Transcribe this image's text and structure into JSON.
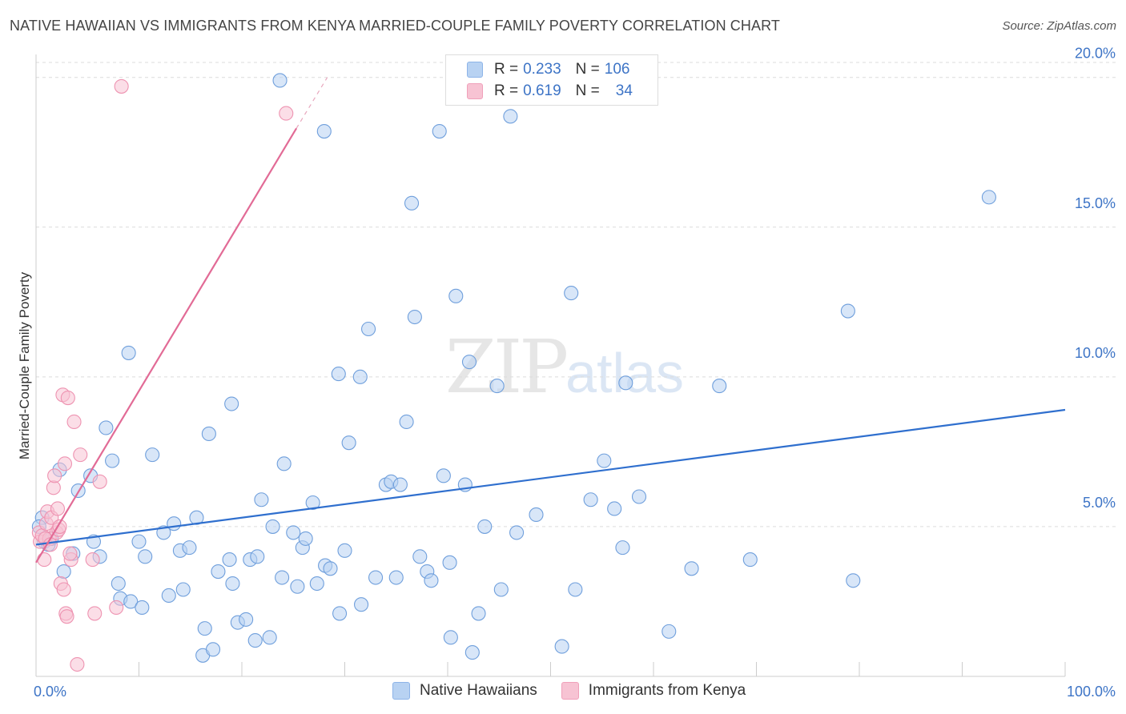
{
  "header": {
    "title": "NATIVE HAWAIIAN VS IMMIGRANTS FROM KENYA MARRIED-COUPLE FAMILY POVERTY CORRELATION CHART",
    "source": "Source: ZipAtlas.com"
  },
  "watermark": {
    "zip": "ZIP",
    "atlas": "atlas"
  },
  "legend": {
    "rows": [
      {
        "r_label": "R = ",
        "r_value": "0.233",
        "n_label": "N = ",
        "n_value": "106",
        "color": "#8db4e8"
      },
      {
        "r_label": "R = ",
        "r_value": "0.619",
        "n_label": "N = ",
        "n_value": "34",
        "color": "#f0a0ba"
      }
    ]
  },
  "chart_data": {
    "type": "scatter",
    "title": "NATIVE HAWAIIAN VS IMMIGRANTS FROM KENYA MARRIED-COUPLE FAMILY POVERTY CORRELATION CHART",
    "xlabel": "",
    "ylabel": "Married-Couple Family Poverty",
    "xlim": [
      0,
      100
    ],
    "ylim": [
      0,
      20.5
    ],
    "x_tick_labels": [
      "0.0%",
      "100.0%"
    ],
    "y_ticks": [
      5,
      10,
      15,
      20
    ],
    "y_tick_labels": [
      "5.0%",
      "10.0%",
      "15.0%",
      "20.0%"
    ],
    "series": [
      {
        "name": "Native Hawaiians",
        "fill": "#b8d2f2",
        "stroke": "#6f9fdc",
        "trend_color": "#2f6fce",
        "trend": {
          "x0": 0,
          "y0": 4.4,
          "x1": 100,
          "y1": 8.9
        },
        "points": [
          [
            0.6,
            5.3
          ],
          [
            0.8,
            4.5
          ],
          [
            1.2,
            4.4
          ],
          [
            1.5,
            4.6
          ],
          [
            2.3,
            6.9
          ],
          [
            2.7,
            3.5
          ],
          [
            3.6,
            4.1
          ],
          [
            4.1,
            6.2
          ],
          [
            5.3,
            6.7
          ],
          [
            5.6,
            4.5
          ],
          [
            6.2,
            4.0
          ],
          [
            6.8,
            8.3
          ],
          [
            7.4,
            7.2
          ],
          [
            8.0,
            3.1
          ],
          [
            8.2,
            2.6
          ],
          [
            9.0,
            10.8
          ],
          [
            9.2,
            2.5
          ],
          [
            10.0,
            4.5
          ],
          [
            10.3,
            2.3
          ],
          [
            10.6,
            4.0
          ],
          [
            11.3,
            7.4
          ],
          [
            12.4,
            4.8
          ],
          [
            12.9,
            2.7
          ],
          [
            13.4,
            5.1
          ],
          [
            14.0,
            4.2
          ],
          [
            14.3,
            2.9
          ],
          [
            14.9,
            4.3
          ],
          [
            15.6,
            5.3
          ],
          [
            16.2,
            0.7
          ],
          [
            16.4,
            1.6
          ],
          [
            16.8,
            8.1
          ],
          [
            17.2,
            0.9
          ],
          [
            17.7,
            3.5
          ],
          [
            18.8,
            3.9
          ],
          [
            19.0,
            9.1
          ],
          [
            19.1,
            3.1
          ],
          [
            19.6,
            1.8
          ],
          [
            20.4,
            1.9
          ],
          [
            20.8,
            3.9
          ],
          [
            21.3,
            1.2
          ],
          [
            21.5,
            4.0
          ],
          [
            21.9,
            5.9
          ],
          [
            22.7,
            1.3
          ],
          [
            23.0,
            5.0
          ],
          [
            23.7,
            19.9
          ],
          [
            23.9,
            3.3
          ],
          [
            24.1,
            7.1
          ],
          [
            25.0,
            4.8
          ],
          [
            25.4,
            3.0
          ],
          [
            25.9,
            4.3
          ],
          [
            26.2,
            4.6
          ],
          [
            26.9,
            5.8
          ],
          [
            27.3,
            3.1
          ],
          [
            28.0,
            18.2
          ],
          [
            28.1,
            3.7
          ],
          [
            28.6,
            3.6
          ],
          [
            29.4,
            10.1
          ],
          [
            29.5,
            2.1
          ],
          [
            30.0,
            4.2
          ],
          [
            30.4,
            7.8
          ],
          [
            31.5,
            10.0
          ],
          [
            31.6,
            2.4
          ],
          [
            32.3,
            11.6
          ],
          [
            33.0,
            3.3
          ],
          [
            34.0,
            6.4
          ],
          [
            34.5,
            6.5
          ],
          [
            35.0,
            3.3
          ],
          [
            35.4,
            6.4
          ],
          [
            36.0,
            8.5
          ],
          [
            36.5,
            15.8
          ],
          [
            36.8,
            12.0
          ],
          [
            37.3,
            4.0
          ],
          [
            38.0,
            3.5
          ],
          [
            38.4,
            3.2
          ],
          [
            39.2,
            18.2
          ],
          [
            39.6,
            6.7
          ],
          [
            40.2,
            3.8
          ],
          [
            40.3,
            1.3
          ],
          [
            40.8,
            12.7
          ],
          [
            41.7,
            6.4
          ],
          [
            42.1,
            10.5
          ],
          [
            42.4,
            0.8
          ],
          [
            43.0,
            2.1
          ],
          [
            43.6,
            5.0
          ],
          [
            44.8,
            9.7
          ],
          [
            45.2,
            2.9
          ],
          [
            46.1,
            18.7
          ],
          [
            46.7,
            4.8
          ],
          [
            48.6,
            5.4
          ],
          [
            51.1,
            1.0
          ],
          [
            52.0,
            12.8
          ],
          [
            52.4,
            2.9
          ],
          [
            53.9,
            5.9
          ],
          [
            55.2,
            7.2
          ],
          [
            56.2,
            5.6
          ],
          [
            57.0,
            4.3
          ],
          [
            57.3,
            9.8
          ],
          [
            58.6,
            6.0
          ],
          [
            61.5,
            1.5
          ],
          [
            63.7,
            3.6
          ],
          [
            66.4,
            9.7
          ],
          [
            69.4,
            3.9
          ],
          [
            78.9,
            12.2
          ],
          [
            79.4,
            3.2
          ],
          [
            92.6,
            16.0
          ],
          [
            0.3,
            5.0
          ]
        ]
      },
      {
        "name": "Immigrants from Kenya",
        "fill": "#f7c3d3",
        "stroke": "#ee93b1",
        "trend_color": "#e26b96",
        "trend": {
          "x0": 0,
          "y0": 3.8,
          "x1": 25.3,
          "y1": 18.3
        },
        "trend_ext": {
          "x0": 25.3,
          "y0": 18.3,
          "x1": 28.3,
          "y1": 20.0
        },
        "points": [
          [
            0.3,
            4.8
          ],
          [
            0.4,
            4.5
          ],
          [
            0.6,
            4.7
          ],
          [
            0.8,
            3.9
          ],
          [
            1.0,
            5.1
          ],
          [
            1.1,
            5.5
          ],
          [
            1.3,
            4.6
          ],
          [
            1.5,
            5.3
          ],
          [
            1.7,
            6.3
          ],
          [
            1.8,
            6.7
          ],
          [
            2.0,
            4.8
          ],
          [
            2.1,
            5.6
          ],
          [
            2.2,
            4.9
          ],
          [
            2.4,
            3.1
          ],
          [
            2.6,
            9.4
          ],
          [
            2.7,
            2.9
          ],
          [
            2.8,
            7.1
          ],
          [
            2.9,
            2.1
          ],
          [
            3.0,
            2.0
          ],
          [
            3.1,
            9.3
          ],
          [
            3.4,
            3.9
          ],
          [
            3.7,
            8.5
          ],
          [
            4.0,
            0.4
          ],
          [
            4.3,
            7.4
          ],
          [
            5.5,
            3.9
          ],
          [
            5.7,
            2.1
          ],
          [
            6.2,
            6.5
          ],
          [
            7.8,
            2.3
          ],
          [
            8.3,
            19.7
          ],
          [
            24.3,
            18.8
          ],
          [
            0.9,
            4.6
          ],
          [
            1.4,
            4.4
          ],
          [
            2.3,
            5.0
          ],
          [
            3.3,
            4.1
          ]
        ]
      }
    ],
    "legend_labels": [
      "Native Hawaiians",
      "Immigrants from Kenya"
    ]
  }
}
